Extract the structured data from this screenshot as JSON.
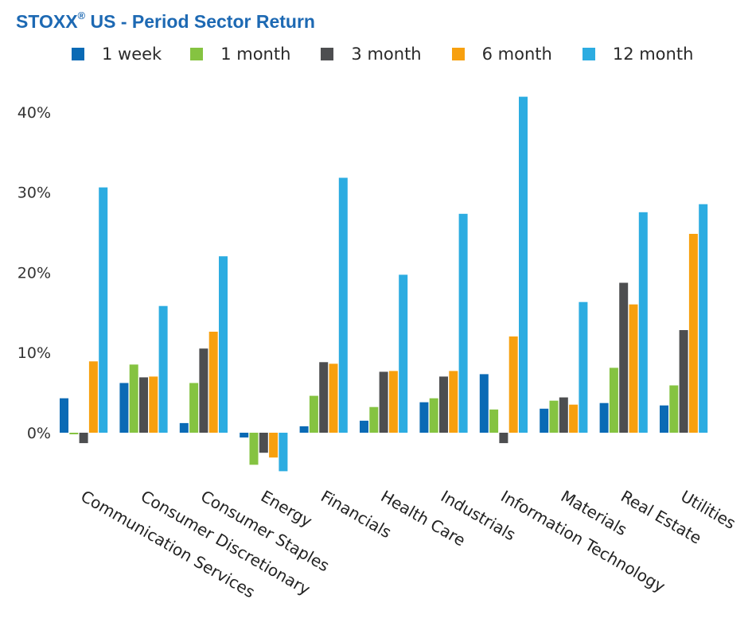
{
  "title": "STOXX",
  "title_reg": "®",
  "title_rest": " US - Period Sector Return",
  "legend": [
    {
      "label": "1 week",
      "color": "#0a6ab5"
    },
    {
      "label": "1 month",
      "color": "#85c341"
    },
    {
      "label": "3 month",
      "color": "#4d4e50"
    },
    {
      "label": "6 month",
      "color": "#f7a00f"
    },
    {
      "label": "12 month",
      "color": "#2cace1"
    }
  ],
  "chart_data": {
    "type": "bar",
    "title": "STOXX® US - Period Sector Return",
    "categories": [
      "Communication Services",
      "Consumer Discretionary",
      "Consumer Staples",
      "Energy",
      "Financials",
      "Health Care",
      "Industrials",
      "Information Technology",
      "Materials",
      "Real Estate",
      "Utilities"
    ],
    "series": [
      {
        "name": "1 week",
        "color": "#0a6ab5",
        "values": [
          4.3,
          6.2,
          1.2,
          -0.6,
          0.8,
          1.5,
          3.8,
          7.3,
          3.0,
          3.7,
          3.4
        ]
      },
      {
        "name": "1 month",
        "color": "#85c341",
        "values": [
          -0.2,
          8.5,
          6.2,
          -4.0,
          4.6,
          3.2,
          4.3,
          2.9,
          4.0,
          8.1,
          5.9
        ]
      },
      {
        "name": "3 month",
        "color": "#4d4e50",
        "values": [
          -1.3,
          6.9,
          10.5,
          -2.5,
          8.8,
          7.6,
          7.0,
          -1.3,
          4.4,
          18.7,
          12.8
        ]
      },
      {
        "name": "6 month",
        "color": "#f7a00f",
        "values": [
          8.9,
          7.0,
          12.6,
          -3.1,
          8.6,
          7.7,
          7.7,
          12.0,
          3.5,
          16.0,
          24.8
        ]
      },
      {
        "name": "12 month",
        "color": "#2cace1",
        "values": [
          30.6,
          15.8,
          22.0,
          -4.8,
          31.8,
          19.7,
          27.3,
          41.9,
          16.3,
          27.5,
          28.5
        ]
      }
    ],
    "yticks": [
      "0%",
      "10%",
      "20%",
      "30%",
      "40%"
    ],
    "ytick_values": [
      0,
      10,
      20,
      30,
      40
    ],
    "ylim": [
      -5,
      42
    ],
    "grid": false,
    "legend_position": "top"
  }
}
